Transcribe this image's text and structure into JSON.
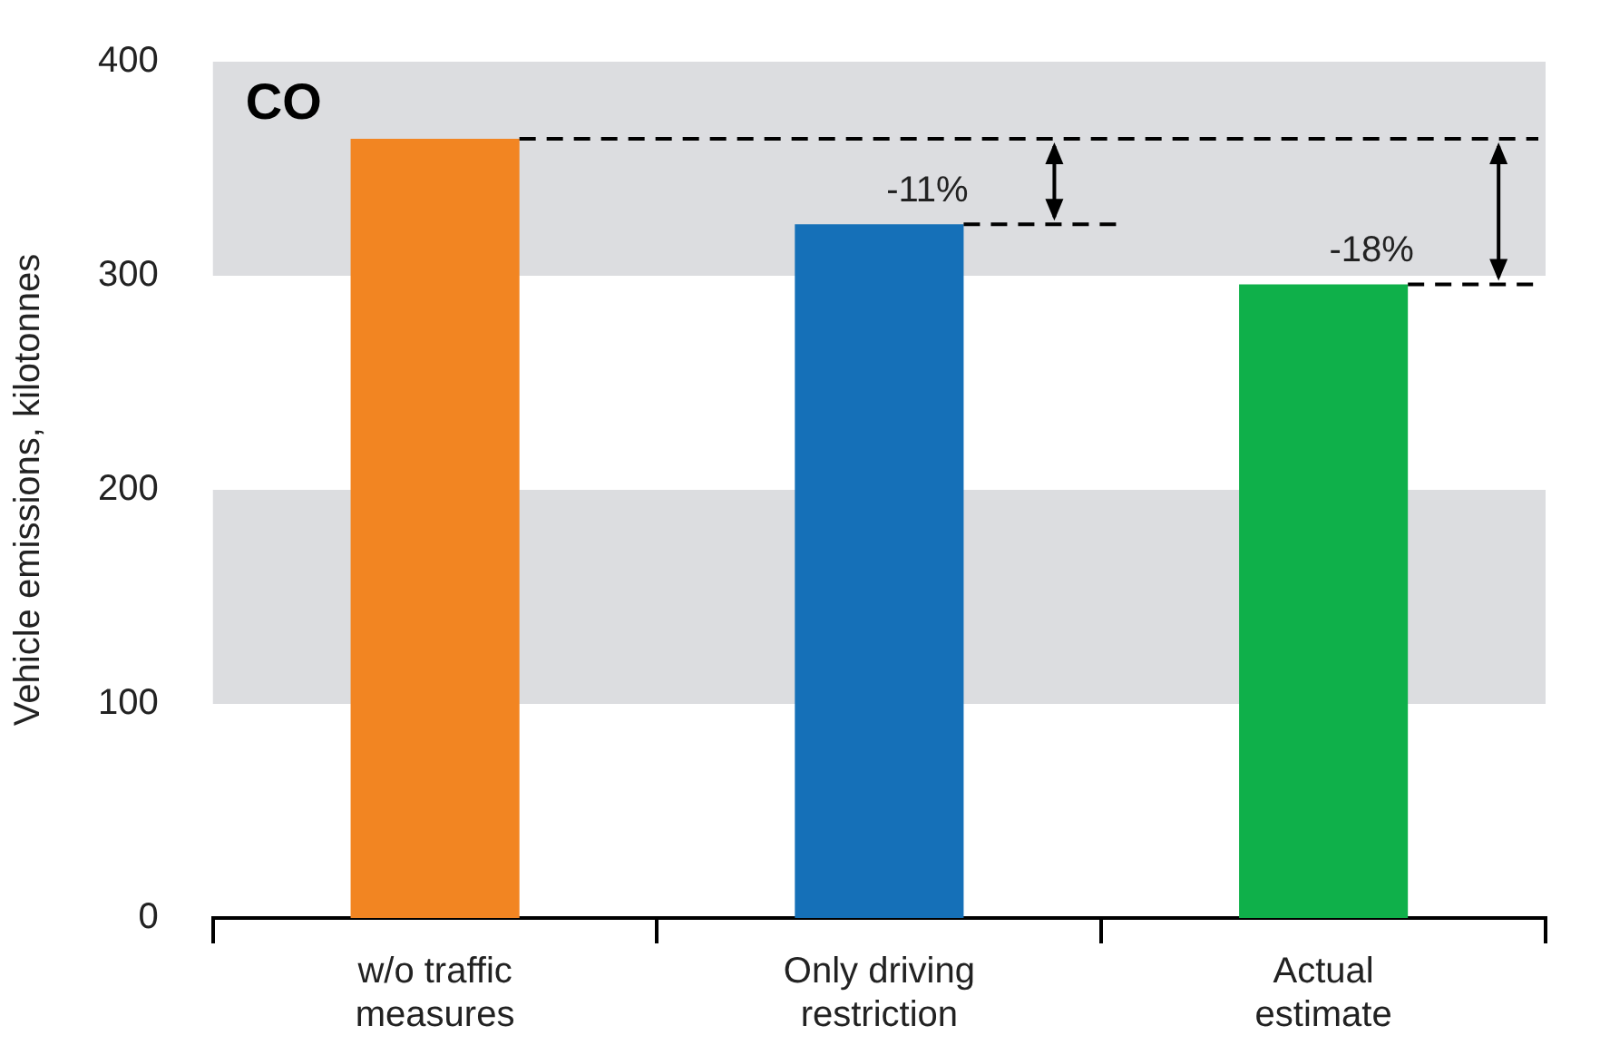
{
  "chart_data": {
    "type": "bar",
    "title": "CO",
    "ylabel": "Vehicle emissions, kilotonnes",
    "categories": [
      "w/o traffic measures",
      "Only driving restriction",
      "Actual estimate"
    ],
    "values": [
      364,
      324,
      296
    ],
    "colors": [
      "#f28522",
      "#1570b8",
      "#0fb04a"
    ],
    "ylim": [
      0,
      400
    ],
    "yticks": [
      0,
      100,
      200,
      300,
      400
    ],
    "bands": [
      {
        "axis": "y",
        "from": 100,
        "to": 200,
        "color": "#dcdde0"
      },
      {
        "axis": "y",
        "from": 300,
        "to": 400,
        "color": "#dcdde0"
      }
    ],
    "ref_lines": [
      {
        "axis": "y",
        "value": 364,
        "line_style": "dashed",
        "color": "#000000"
      }
    ],
    "annotations": [
      {
        "text": "-11%",
        "x": "Only driving restriction",
        "y": 324
      },
      {
        "text": "-18%",
        "x": "Actual estimate",
        "y": 296
      }
    ]
  }
}
